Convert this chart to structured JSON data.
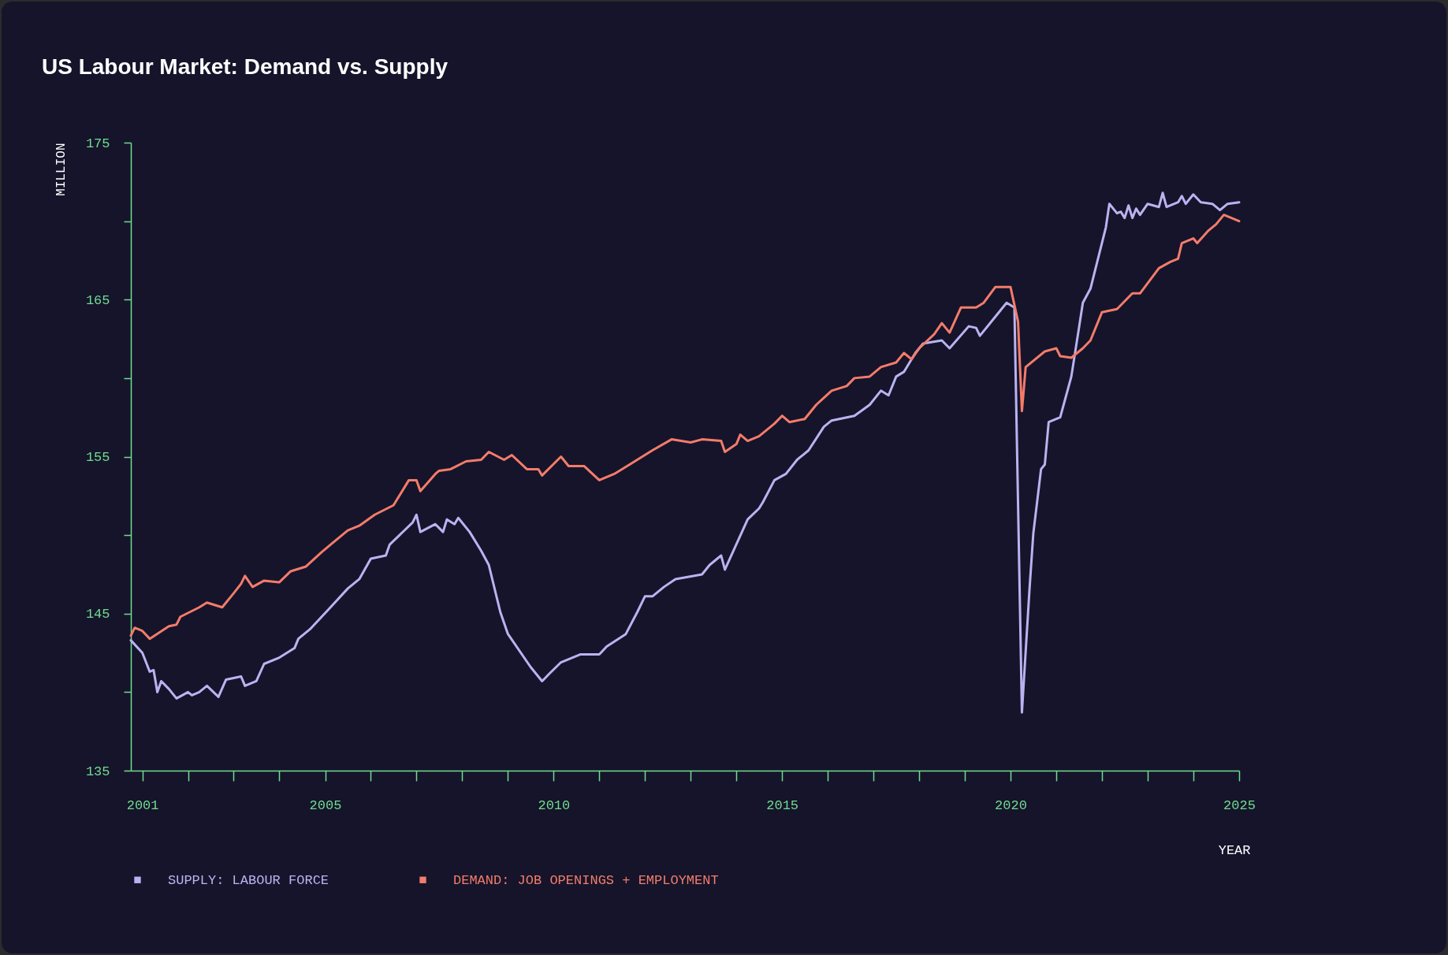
{
  "chart_data": {
    "type": "line",
    "title": "US Labour Market: Demand vs. Supply",
    "xlabel": "YEAR",
    "ylabel": "MILLION",
    "xlim": [
      "2000-10",
      "2025-01"
    ],
    "xticks": [
      {
        "value": "2001",
        "label": "2001"
      },
      {
        "value": "2002",
        "label": null
      },
      {
        "value": "2003",
        "label": null
      },
      {
        "value": "2004",
        "label": null
      },
      {
        "value": "2005",
        "label": "2005"
      },
      {
        "value": "2006",
        "label": null
      },
      {
        "value": "2007",
        "label": null
      },
      {
        "value": "2008",
        "label": null
      },
      {
        "value": "2009",
        "label": null
      },
      {
        "value": "2010",
        "label": "2010"
      },
      {
        "value": "2011",
        "label": null
      },
      {
        "value": "2012",
        "label": null
      },
      {
        "value": "2013",
        "label": null
      },
      {
        "value": "2014",
        "label": null
      },
      {
        "value": "2015",
        "label": "2015"
      },
      {
        "value": "2016",
        "label": null
      },
      {
        "value": "2017",
        "label": null
      },
      {
        "value": "2018",
        "label": null
      },
      {
        "value": "2019",
        "label": null
      },
      {
        "value": "2020",
        "label": "2020"
      },
      {
        "value": "2021",
        "label": null
      },
      {
        "value": "2022",
        "label": null
      },
      {
        "value": "2023",
        "label": null
      },
      {
        "value": "2024",
        "label": null
      },
      {
        "value": "2025",
        "label": "2025"
      }
    ],
    "ylim": [
      135,
      175
    ],
    "yticks": [
      135,
      {
        "value": 140,
        "label": null
      },
      145,
      {
        "value": 150,
        "label": null
      },
      155,
      {
        "value": 160,
        "label": null
      },
      165,
      {
        "value": 170,
        "label": null
      },
      175
    ],
    "legend": "bottom",
    "grid": false,
    "line_style": "solid",
    "series": [
      {
        "name": "SUPPLY: LABOUR FORCE",
        "color": "#b9b4f0",
        "x": [
          "2000-10",
          "2001-01",
          "2001-03",
          "2001-04",
          "2001-05",
          "2001-06",
          "2001-08",
          "2001-10",
          "2002-01",
          "2002-02",
          "2002-04",
          "2002-06",
          "2002-09",
          "2002-11",
          "2003-03",
          "2003-04",
          "2003-07",
          "2003-09",
          "2004-01",
          "2004-05",
          "2004-06",
          "2004-09",
          "2005-02",
          "2005-07",
          "2005-10",
          "2006-01",
          "2006-05",
          "2006-06",
          "2006-12",
          "2007-01",
          "2007-02",
          "2007-06",
          "2007-08",
          "2007-09",
          "2007-11",
          "2007-12",
          "2008-03",
          "2008-06",
          "2008-08",
          "2008-11",
          "2009-01",
          "2009-07",
          "2009-10",
          "2009-12",
          "2010-03",
          "2010-08",
          "2011-01",
          "2011-03",
          "2011-08",
          "2011-11",
          "2012-01",
          "2012-03",
          "2012-06",
          "2012-09",
          "2013-04",
          "2013-06",
          "2013-09",
          "2013-10",
          "2014-04",
          "2014-07",
          "2014-08",
          "2014-11",
          "2015-02",
          "2015-05",
          "2015-08",
          "2015-12",
          "2016-02",
          "2016-06",
          "2016-08",
          "2016-12",
          "2017-03",
          "2017-05",
          "2017-07",
          "2017-09",
          "2017-12",
          "2018-02",
          "2018-07",
          "2018-09",
          "2019-02",
          "2019-04",
          "2019-05",
          "2019-12",
          "2020-02",
          "2020-04",
          "2020-06",
          "2020-07",
          "2020-09",
          "2020-10",
          "2020-11",
          "2021-02",
          "2021-05",
          "2021-07",
          "2021-08",
          "2021-10",
          "2022-02",
          "2022-03",
          "2022-05",
          "2022-06",
          "2022-07",
          "2022-08",
          "2022-09",
          "2022-10",
          "2022-11",
          "2023-01",
          "2023-04",
          "2023-05",
          "2023-06",
          "2023-09",
          "2023-10",
          "2023-11",
          "2024-01",
          "2024-03",
          "2024-06",
          "2024-08",
          "2024-10",
          "2025-01"
        ],
        "values": [
          143.3,
          142.5,
          141.3,
          141.4,
          140.0,
          140.7,
          140.2,
          139.6,
          140.0,
          139.8,
          140.0,
          140.4,
          139.7,
          140.8,
          141.0,
          140.4,
          140.7,
          141.8,
          142.2,
          142.8,
          143.4,
          144.0,
          145.3,
          146.6,
          147.2,
          148.5,
          148.7,
          149.4,
          150.8,
          151.3,
          150.2,
          150.7,
          150.2,
          151.0,
          150.7,
          151.1,
          150.2,
          149.0,
          148.1,
          145.1,
          143.7,
          141.6,
          140.7,
          141.2,
          141.9,
          142.4,
          142.4,
          142.9,
          143.7,
          145.1,
          146.1,
          146.1,
          146.7,
          147.2,
          147.5,
          148.1,
          148.7,
          147.8,
          151.0,
          151.7,
          152.1,
          153.5,
          153.9,
          154.8,
          155.4,
          156.9,
          157.3,
          157.5,
          157.6,
          158.3,
          159.2,
          158.9,
          160.1,
          160.4,
          161.6,
          162.2,
          162.4,
          161.9,
          163.3,
          163.2,
          162.7,
          164.8,
          164.5,
          138.7,
          146.6,
          150.1,
          154.2,
          154.5,
          157.2,
          157.5,
          160.1,
          163.2,
          164.8,
          165.7,
          169.6,
          171.1,
          170.5,
          170.6,
          170.2,
          171.0,
          170.2,
          170.8,
          170.4,
          171.1,
          170.9,
          171.8,
          170.9,
          171.2,
          171.6,
          171.1,
          171.7,
          171.2,
          171.1,
          170.7,
          171.1,
          171.2
        ]
      },
      {
        "name": "DEMAND: JOB OPENINGS + EMPLOYMENT",
        "color": "#f47c6a",
        "x": [
          "2000-10",
          "2000-11",
          "2001-01",
          "2001-03",
          "2001-08",
          "2001-10",
          "2001-11",
          "2002-04",
          "2002-06",
          "2002-10",
          "2003-01",
          "2003-03",
          "2003-04",
          "2003-06",
          "2003-09",
          "2004-01",
          "2004-04",
          "2004-08",
          "2004-12",
          "2005-03",
          "2005-07",
          "2005-10",
          "2006-02",
          "2006-07",
          "2006-11",
          "2007-01",
          "2007-02",
          "2007-06",
          "2007-07",
          "2007-10",
          "2008-02",
          "2008-06",
          "2008-08",
          "2008-12",
          "2009-02",
          "2009-06",
          "2009-09",
          "2009-10",
          "2010-03",
          "2010-05",
          "2010-09",
          "2011-01",
          "2011-05",
          "2011-09",
          "2012-03",
          "2012-08",
          "2013-01",
          "2013-04",
          "2013-09",
          "2013-10",
          "2014-01",
          "2014-02",
          "2014-04",
          "2014-07",
          "2014-11",
          "2015-01",
          "2015-03",
          "2015-07",
          "2015-10",
          "2016-02",
          "2016-06",
          "2016-08",
          "2016-12",
          "2017-03",
          "2017-07",
          "2017-09",
          "2017-11",
          "2018-01",
          "2018-05",
          "2018-07",
          "2018-09",
          "2018-12",
          "2019-04",
          "2019-06",
          "2019-09",
          "2020-01",
          "2020-03",
          "2020-04",
          "2020-05",
          "2020-10",
          "2021-01",
          "2021-02",
          "2021-05",
          "2021-08",
          "2021-10",
          "2022-01",
          "2022-03",
          "2022-05",
          "2022-09",
          "2022-11",
          "2023-04",
          "2023-07",
          "2023-09",
          "2023-10",
          "2023-12",
          "2024-01",
          "2024-02",
          "2024-05",
          "2024-07",
          "2024-09",
          "2024-11",
          "2025-01"
        ],
        "values": [
          143.6,
          144.1,
          143.9,
          143.4,
          144.2,
          144.3,
          144.8,
          145.4,
          145.7,
          145.4,
          146.3,
          146.9,
          147.4,
          146.7,
          147.1,
          147.0,
          147.7,
          148.0,
          148.9,
          149.5,
          150.3,
          150.6,
          151.3,
          151.9,
          153.5,
          153.5,
          152.8,
          153.9,
          154.1,
          154.2,
          154.7,
          154.8,
          155.3,
          154.8,
          155.1,
          154.2,
          154.2,
          153.8,
          155.0,
          154.4,
          154.4,
          153.5,
          153.9,
          154.5,
          155.4,
          156.1,
          155.9,
          156.1,
          156.0,
          155.3,
          155.8,
          156.4,
          156.0,
          156.3,
          157.1,
          157.6,
          157.2,
          157.4,
          158.3,
          159.2,
          159.5,
          160.0,
          160.1,
          160.7,
          161.0,
          161.6,
          161.2,
          161.9,
          162.8,
          163.5,
          162.9,
          164.5,
          164.5,
          164.8,
          165.8,
          165.8,
          163.6,
          157.9,
          160.7,
          161.7,
          161.9,
          161.4,
          161.3,
          161.9,
          162.4,
          164.2,
          164.3,
          164.4,
          165.4,
          165.4,
          167.0,
          167.4,
          167.6,
          168.6,
          168.8,
          168.9,
          168.6,
          169.4,
          169.8,
          170.4,
          170.2,
          170.0
        ]
      }
    ]
  }
}
